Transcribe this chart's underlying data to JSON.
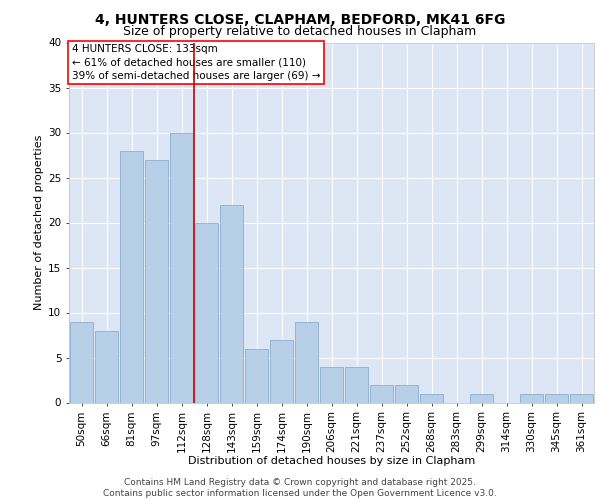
{
  "title_line1": "4, HUNTERS CLOSE, CLAPHAM, BEDFORD, MK41 6FG",
  "title_line2": "Size of property relative to detached houses in Clapham",
  "xlabel": "Distribution of detached houses by size in Clapham",
  "ylabel": "Number of detached properties",
  "categories": [
    "50sqm",
    "66sqm",
    "81sqm",
    "97sqm",
    "112sqm",
    "128sqm",
    "143sqm",
    "159sqm",
    "174sqm",
    "190sqm",
    "206sqm",
    "221sqm",
    "237sqm",
    "252sqm",
    "268sqm",
    "283sqm",
    "299sqm",
    "314sqm",
    "330sqm",
    "345sqm",
    "361sqm"
  ],
  "values": [
    9,
    8,
    28,
    27,
    30,
    20,
    22,
    6,
    7,
    9,
    4,
    4,
    2,
    2,
    1,
    0,
    1,
    0,
    1,
    1,
    1
  ],
  "bar_color": "#b8cfe8",
  "bar_edge_color": "#8ab0d0",
  "vline_index": 4.5,
  "vline_color": "#cc0000",
  "subject_label": "4 HUNTERS CLOSE: 133sqm",
  "annotation_line1": "← 61% of detached houses are smaller (110)",
  "annotation_line2": "39% of semi-detached houses are larger (69) →",
  "plot_bg_color": "#dce6f5",
  "grid_color": "#ffffff",
  "fig_bg_color": "#ffffff",
  "ylim": [
    0,
    40
  ],
  "yticks": [
    0,
    5,
    10,
    15,
    20,
    25,
    30,
    35,
    40
  ],
  "title_fontsize": 10,
  "subtitle_fontsize": 9,
  "axis_label_fontsize": 8,
  "tick_fontsize": 7.5,
  "annot_fontsize": 7.5,
  "footer_fontsize": 6.5,
  "footer_line1": "Contains HM Land Registry data © Crown copyright and database right 2025.",
  "footer_line2": "Contains public sector information licensed under the Open Government Licence v3.0."
}
